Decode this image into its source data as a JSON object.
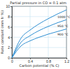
{
  "chart_data": {
    "type": "line",
    "title": "Partial pressure in CO = 0.1 atm",
    "x_label": "Carbon potential (% C)",
    "y_label": "Rate constant (mm h⁻½)",
    "x": [
      0,
      0.2,
      0.4,
      0.6,
      0.8,
      1.0,
      1.2
    ],
    "series": [
      {
        "name": "1000 °C",
        "color": "#2f8fd2",
        "values": [
          0,
          3.8,
          5.4,
          6.6,
          7.6,
          8.5,
          9.3
        ]
      },
      {
        "name": "950 °C",
        "color": "#2f8fd2",
        "values": [
          0,
          3.0,
          4.3,
          5.3,
          6.1,
          6.8,
          7.4
        ]
      },
      {
        "name": "900 °C",
        "color": "#2f8fd2",
        "values": [
          0,
          2.3,
          3.3,
          4.0,
          4.6,
          5.1,
          5.6
        ]
      }
    ],
    "xlim": [
      0,
      1.2
    ],
    "xticks": [
      0,
      0.4,
      0.8,
      1.2
    ],
    "ylim": [
      0,
      10
    ],
    "yticks": [
      0,
      2,
      4,
      6,
      8,
      10
    ],
    "grid": true
  }
}
